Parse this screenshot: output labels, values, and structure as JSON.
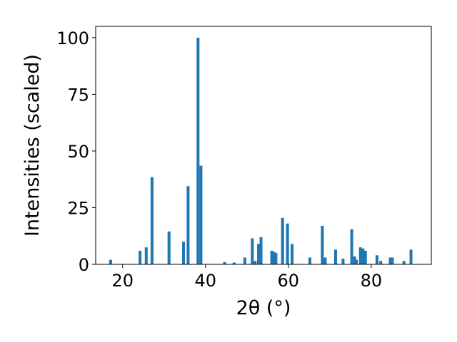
{
  "chart_data": {
    "type": "bar",
    "xlabel": "2θ (°)",
    "ylabel": "Intensities (scaled)",
    "xlim": [
      13.5,
      94.5
    ],
    "ylim": [
      0,
      105
    ],
    "xticks": [
      "20",
      "40",
      "60",
      "80"
    ],
    "yticks": [
      "0",
      "25",
      "50",
      "75",
      "100"
    ],
    "bar_color": "#1f77b4",
    "bar_width": 0.7,
    "grid": false,
    "legend": "none",
    "x": [
      17.1,
      24.2,
      25.7,
      27.1,
      31.2,
      34.7,
      35.8,
      38.2,
      38.9,
      44.6,
      46.9,
      49.5,
      51.3,
      52.0,
      52.8,
      53.4,
      56.0,
      56.5,
      57.0,
      58.6,
      59.8,
      60.9,
      65.2,
      68.2,
      68.9,
      71.4,
      73.2,
      75.3,
      76.0,
      76.4,
      77.4,
      78.0,
      78.6,
      81.4,
      82.3,
      84.6,
      85.1,
      87.9,
      89.6
    ],
    "values": [
      2,
      6,
      7.5,
      38.5,
      14.5,
      10,
      34.5,
      100,
      43.5,
      1,
      0.8,
      3,
      11.5,
      1.5,
      9,
      12,
      6,
      5.5,
      5,
      20.5,
      18,
      9,
      3,
      17,
      3,
      6.5,
      2.5,
      15.5,
      3.5,
      2,
      7.5,
      7,
      6,
      4,
      1.5,
      3,
      3,
      1.5,
      6.5
    ]
  }
}
